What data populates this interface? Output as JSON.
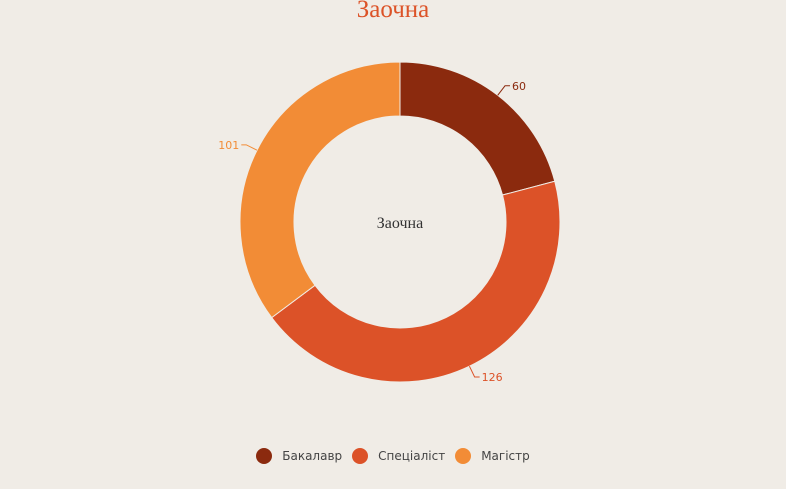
{
  "chart_data": {
    "type": "pie",
    "variant": "donut",
    "title": "Заочна",
    "center_label": "Заочна",
    "legend_position": "bottom",
    "slices": [
      {
        "name": "Бакалавр",
        "value": 60,
        "color": "#8b2a0e"
      },
      {
        "name": "Спеціаліст",
        "value": 126,
        "color": "#dc5228"
      },
      {
        "name": "Магістр",
        "value": 101,
        "color": "#f28c36"
      }
    ]
  }
}
